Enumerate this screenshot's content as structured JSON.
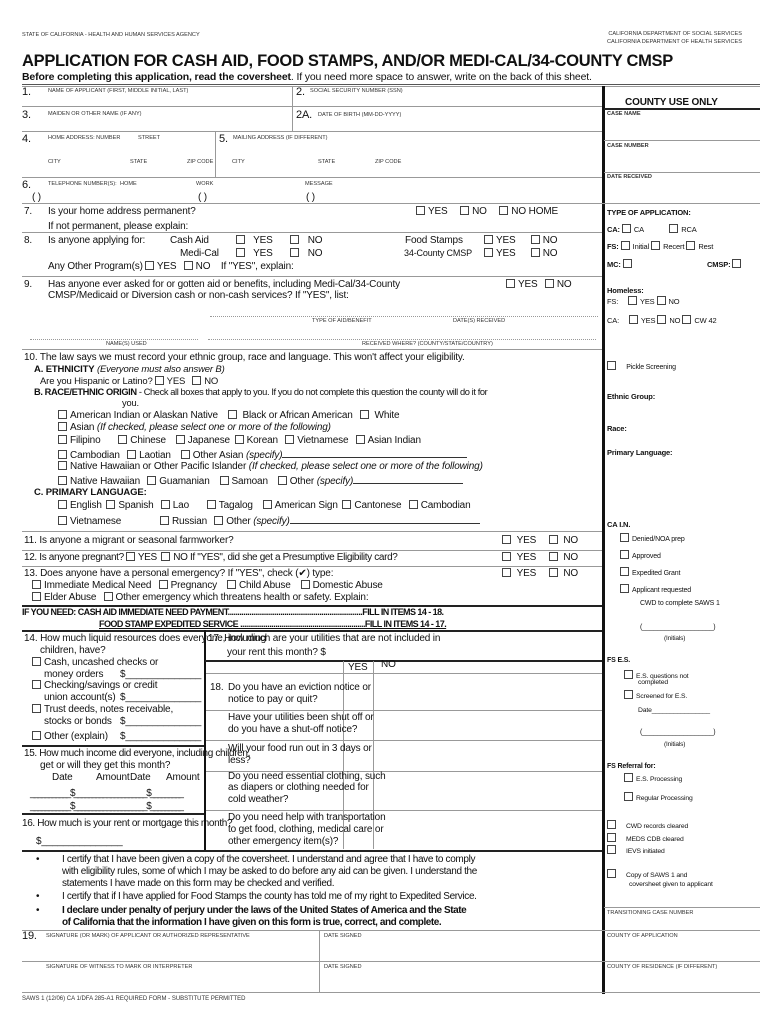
{
  "header": {
    "agency": "STATE OF CALIFORNIA - HEALTH AND HUMAN SERVICES AGENCY",
    "dept1": "CALIFORNIA DEPARTMENT OF SOCIAL SERVICES",
    "dept2": "CALIFORNIA DEPARTMENT OF HEALTH SERVICES",
    "title": "APPLICATION FOR CASH AID, FOOD STAMPS, AND/OR MEDI-CAL/34-COUNTY CMSP",
    "sub_bold": "Before completing this application, read the coversheet",
    "sub_rest": ". If you need more space to answer, write on the back of this sheet."
  },
  "fields": {
    "n1": "1.",
    "name": "NAME OF APPLICANT (FIRST, MIDDLE INITIAL, LAST)",
    "n2": "2.",
    "ssn": "SOCIAL SECURITY NUMBER (SSN)",
    "n3": "3.",
    "maiden": "MAIDEN OR OTHER NAME (IF ANY)",
    "n2a": "2A.",
    "dob": "DATE OF BIRTH (MM-DD-YYYY)",
    "n4": "4.",
    "home": "HOME ADDRESS: NUMBER",
    "street": "STREET",
    "n5": "5.",
    "mailing": "MAILING ADDRESS (IF DIFFERENT)",
    "city": "CITY",
    "state": "STATE",
    "zip": "ZIP CODE",
    "n6": "6.",
    "tel": "TELEPHONE NUMBER(S):",
    "tel_home": "HOME",
    "work": "WORK",
    "message": "MESSAGE",
    "paren": "(        )"
  },
  "q7": {
    "n": "7.",
    "text": "Is your home address permanent?",
    "yes": "YES",
    "no": "NO",
    "nohome": "NO HOME",
    "explain": "If not permanent, please explain:"
  },
  "q8": {
    "n": "8.",
    "text": "Is anyone applying for:",
    "cash": "Cash Aid",
    "medi": "Medi-Cal",
    "food": "Food Stamps",
    "cmsp": "34-County CMSP",
    "yes": "YES",
    "no": "NO",
    "other": "Any Other Program(s)",
    "ifyes": "If \"YES\", explain:"
  },
  "q9": {
    "n": "9.",
    "l1": "Has anyone ever asked for or gotten aid or benefits, including Medi-Cal/34-County",
    "l2": "CMSP/Medicaid or Diversion cash or non-cash services? If \"YES\", list:",
    "yes": "YES",
    "no": "NO",
    "type": "TYPE OF AID/BENEFIT",
    "dates": "DATE(S) RECEIVED",
    "names": "NAME(S) USED",
    "where": "RECEIVED WHERE? (COUNTY/STATE/COUNTRY)"
  },
  "q10": {
    "text": "10. The law says we must record your ethnic group, race and language. This won't affect your eligibility.",
    "a": "A. ETHNICITY",
    "a_note": "(Everyone must also answer B)",
    "hisp": "Are you Hispanic or Latino?",
    "yes": "YES",
    "no": "NO",
    "b": "B. RACE/ETHNIC ORIGIN",
    "b_note": "- Check all boxes that apply to you.  If you do not complete this question the county will do it for",
    "b_note2": "you.",
    "aian": "American Indian or Alaskan Native",
    "black": "Black or African American",
    "white": "White",
    "asian": "Asian",
    "asian_note": "(If checked, please select one or more of the following)",
    "filipino": "Filipino",
    "chinese": "Chinese",
    "japanese": "Japanese",
    "korean": "Korean",
    "vietnamese": "Vietnamese",
    "asian_indian": "Asian Indian",
    "cambodian": "Cambodian",
    "laotian": "Laotian",
    "other_asian": "Other Asian",
    "specify": "(specify)",
    "nhpi": "Native Hawaiian or Other Pacific Islander",
    "nhpi_note": "(If checked, please select one or more of the following)",
    "nh": "Native Hawaiian",
    "guam": "Guamanian",
    "samoan": "Samoan",
    "other": "Other",
    "c": "C. PRIMARY LANGUAGE:",
    "english": "English",
    "spanish": "Spanish",
    "lao": "Lao",
    "tagalog": "Tagalog",
    "asl": "American Sign",
    "cantonese": "Cantonese",
    "cambodian_l": "Cambodian",
    "vietnamese_l": "Vietnamese",
    "russian": "Russian"
  },
  "q11": {
    "text": "11.  Is anyone a migrant or seasonal farmworker?",
    "yes": "YES",
    "no": "NO"
  },
  "q12": {
    "text": "12.  Is anyone pregnant?",
    "yes": "YES",
    "no": "NO",
    "pe": "If \"YES\", did she get a Presumptive Eligibility card?"
  },
  "q13": {
    "text": "13.  Does anyone have a personal emergency?  If \"YES\", check (✔) type:",
    "yes": "YES",
    "no": "NO",
    "med": "Immediate Medical Need",
    "preg": "Pregnancy",
    "child": "Child Abuse",
    "dom": "Domestic Abuse",
    "elder": "Elder Abuse",
    "other": "Other emergency which threatens health or safety.  Explain:"
  },
  "need": {
    "l1": "IF YOU NEED:  CASH AID IMMEDIATE NEED PAYMENT.....................................................................FILL IN ITEMS 14 - 18.",
    "l2": "FOOD STAMP EXPEDITED SERVICE ................................................................FILL IN ITEMS 14 - 17."
  },
  "q14": {
    "l1": "14. How much liquid resources does everyone, including",
    "l2": "children, have?",
    "cash1": "Cash, uncashed checks or",
    "cash2": "money orders",
    "chk1": "Checking/savings or credit",
    "chk2": "union account(s)",
    "trust1": "Trust deeds, notes receivable,",
    "trust2": "stocks or bonds",
    "other": "Other (explain)",
    "dollar": "$______________"
  },
  "q15": {
    "l1": "15. How much income did everyone, including children,",
    "l2": "get or will they get this month?",
    "date": "Date",
    "amount": "Amount",
    "row": "___________  $_________  ___________  $_________"
  },
  "q16": {
    "text": "16. How much is your rent or mortgage this month?",
    "dollar": "$_______________"
  },
  "q17": {
    "l1": "17.  How much are your utilities that are not included in",
    "l2": "your rent this month?   $"
  },
  "q18": {
    "yes": "YES",
    "no": "NO",
    "n": "18.",
    "a1": "Do you have an eviction notice or",
    "a2": "notice to pay or quit?",
    "b1": "Have your utilities been shut off or",
    "b2": "do you have a shut-off notice?",
    "c1": "Will your food run out in 3 days or",
    "c2": "less?",
    "d1": "Do you need essential clothing, such",
    "d2": "as diapers or clothing needed for",
    "d3": "cold weather?",
    "e1": "Do you need help with transportation",
    "e2": "to get food, clothing, medical care or",
    "e3": "other emergency item(s)?"
  },
  "cert": {
    "c1a": "I certify that I have been given a copy of the coversheet.  I understand and agree that I have to comply",
    "c1b": "with eligibility rules, some of which I may be asked to do before any aid can be given.  I understand the",
    "c1c": "statements I have made on this form may be checked and verified.",
    "c2": "I certify that if I have applied for Food Stamps the county has told me of my right to Expedited Service.",
    "c3a": "I declare under penalty of perjury under the laws of the United States of America and the State",
    "c3b": "of California that the information I have given on this form is true, correct, and  complete.",
    "bullet": "•"
  },
  "sig": {
    "n": "19.",
    "applicant": "SIGNATURE (OR MARK) OF APPLICANT OR AUTHORIZED REPRESENTATIVE",
    "date": "DATE SIGNED",
    "witness": "SIGNATURE OF WITNESS TO MARK OR INTERPRETER"
  },
  "footer": "SAWS 1 (12/06)  CA 1/DFA 285-A1  REQUIRED FORM - SUBSTITUTE PERMITTED",
  "county": {
    "title": "COUNTY USE ONLY",
    "case_name": "CASE NAME",
    "case_number": "CASE NUMBER",
    "date_received": "DATE RECEIVED",
    "type": "TYPE OF APPLICATION:",
    "ca": "CA:",
    "ca_ca": "CA",
    "rca": "RCA",
    "fs": "FS:",
    "initial": "Initial",
    "recert": "Recert",
    "rest": "Rest",
    "mc": "MC:",
    "cmsp": "CMSP:",
    "homeless": "Homeless:",
    "h_fs": "FS:",
    "h_ca": "CA:",
    "yes": "YES",
    "no": "NO",
    "cw42": "CW 42",
    "pickle": "Pickle Screening",
    "ethnic": "Ethnic Group:",
    "race": "Race:",
    "lang": "Primary Language:",
    "cain": "CA I.N.",
    "denied": "Denied/NOA prep",
    "approved": "Approved",
    "expedited": "Expedited Grant",
    "appreq": "Applicant requested",
    "cwd": "CWD to complete SAWS 1",
    "initials_line": "(___________________)",
    "initials": "(Initials)",
    "fses": "FS E.S.",
    "esq1": "E.S. questions not",
    "esq2": "completed",
    "screened": "Screened for E.S.",
    "date": "Date________________",
    "referral": "FS Referral for:",
    "esproc": "E.S. Processing",
    "regular": "Regular Processing",
    "cwdrec": "CWD records cleared",
    "meds": "MEDS CDB cleared",
    "ievs": "IEVS initiated",
    "copy1": "Copy of SAWS 1 and",
    "copy2": "coversheet given to applicant",
    "trans": "TRANSITIONING CASE NUMBER",
    "county_app": "COUNTY OF APPLICATION",
    "county_res": "COUNTY OF RESIDENCE (IF DIFFERENT)"
  }
}
